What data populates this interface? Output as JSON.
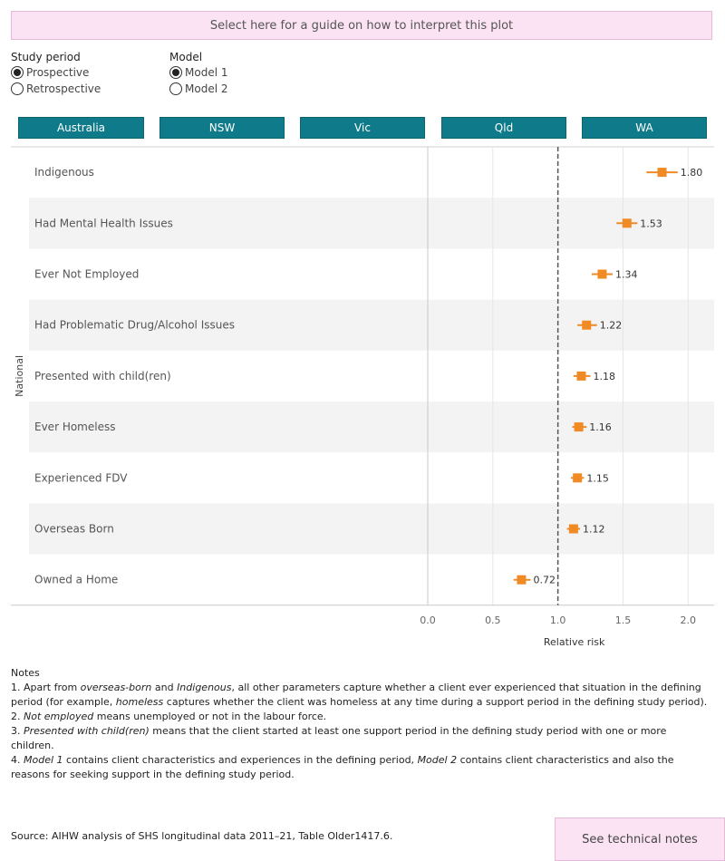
{
  "guide_button": "Select here for a guide on how to interpret this plot",
  "study_period": {
    "title": "Study period",
    "options": [
      {
        "label": "Prospective",
        "selected": true
      },
      {
        "label": "Retrospective",
        "selected": false
      }
    ]
  },
  "model": {
    "title": "Model",
    "options": [
      {
        "label": "Model 1",
        "selected": true
      },
      {
        "label": "Model 2",
        "selected": false
      }
    ]
  },
  "tabs": [
    "Australia",
    "NSW",
    "Vic",
    "Qld",
    "WA"
  ],
  "colors": {
    "tab": "#0f7a8a",
    "marker": "#f08a24",
    "band": "#f3f3f3",
    "button": "#fbe3f3"
  },
  "chart_data": {
    "type": "scatter",
    "row_header": "National",
    "xlabel": "Relative risk",
    "xlim": [
      0,
      2.2
    ],
    "xticks": [
      "0.0",
      "0.5",
      "1.0",
      "1.5",
      "2.0"
    ],
    "reference_line": 1.0,
    "categories": [
      "Indigenous",
      "Had Mental Health Issues",
      "Ever Not Employed",
      "Had Problematic Drug/Alcohol Issues",
      "Presented with child(ren)",
      "Ever Homeless",
      "Experienced FDV",
      "Overseas Born",
      "Owned a Home"
    ],
    "values": [
      1.8,
      1.53,
      1.34,
      1.22,
      1.18,
      1.16,
      1.15,
      1.12,
      0.72
    ],
    "labels": [
      "1.80",
      "1.53",
      "1.34",
      "1.22",
      "1.18",
      "1.16",
      "1.15",
      "1.12",
      "0.72"
    ],
    "ci_low": [
      1.68,
      1.45,
      1.26,
      1.15,
      1.12,
      1.11,
      1.1,
      1.07,
      0.66
    ],
    "ci_high": [
      1.92,
      1.61,
      1.42,
      1.3,
      1.25,
      1.22,
      1.2,
      1.17,
      0.79
    ]
  },
  "notes": {
    "title": "Notes",
    "n1_a": "1.  Apart from ",
    "n1_b": "overseas-born",
    "n1_c": "  and ",
    "n1_d": "Indigenous",
    "n1_e": ", all other parameters capture whether a client ever experienced that situation in the defining period (for example, ",
    "n1_f": "homeless",
    "n1_g": "  captures whether the client was homeless at any time during a support period in the defining study period).",
    "n2_a": "2.  ",
    "n2_b": "Not employed",
    "n2_c": "  means unemployed or not in the labour force.",
    "n3_a": "3.  ",
    "n3_b": "Presented with child(ren)",
    "n3_c": "  means that the client started at least one support period in the defining study period with one or more children.",
    "n4_a": "4.  ",
    "n4_b": "Model 1",
    "n4_c": " contains client characteristics and experiences in the defining period, ",
    "n4_d": "Model 2",
    "n4_e": " contains client characteristics and also the reasons for seeking support in the defining study period."
  },
  "source": "Source: AIHW analysis of SHS longitudinal data 2011–21, Table Older1417.6.",
  "technical_button": "See technical notes"
}
